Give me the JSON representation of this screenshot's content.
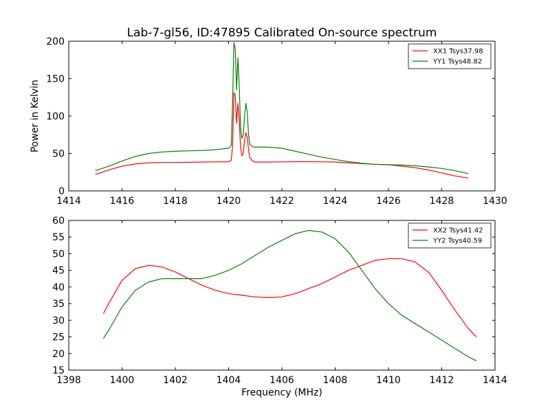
{
  "figure": {
    "title": "Lab-7-gl56, ID:47895 Calibrated On-source spectrum"
  },
  "chart_data": [
    {
      "type": "line",
      "title": "Lab-7-gl56, ID:47895 Calibrated On-source spectrum",
      "xlabel": "",
      "ylabel": "Power in Kelvin",
      "xlim": [
        1414,
        1430
      ],
      "ylim": [
        0,
        200
      ],
      "xticks": [
        1414,
        1416,
        1418,
        1420,
        1422,
        1424,
        1426,
        1428,
        1430
      ],
      "yticks": [
        0,
        50,
        100,
        150,
        200
      ],
      "grid": false,
      "legend": "top-right",
      "series": [
        {
          "name": "XX1 Tsys37.98",
          "color": "#ff0000",
          "x": [
            1415.0,
            1415.5,
            1416.0,
            1416.5,
            1417.0,
            1417.5,
            1418.0,
            1418.5,
            1419.0,
            1419.5,
            1420.0,
            1420.1,
            1420.15,
            1420.2,
            1420.25,
            1420.3,
            1420.35,
            1420.4,
            1420.45,
            1420.5,
            1420.55,
            1420.6,
            1420.65,
            1420.7,
            1420.75,
            1420.8,
            1420.9,
            1421.0,
            1421.5,
            1422.0,
            1422.5,
            1423.0,
            1423.5,
            1424.0,
            1424.5,
            1425.0,
            1425.5,
            1426.0,
            1426.5,
            1427.0,
            1427.5,
            1428.0,
            1428.5,
            1429.0
          ],
          "y": [
            22,
            28,
            33,
            36,
            37.5,
            38,
            38,
            38.2,
            38.5,
            38.8,
            39,
            41,
            60,
            131,
            128,
            90,
            117,
            95,
            58,
            47,
            50,
            68,
            78,
            72,
            55,
            44,
            40,
            38.5,
            38.5,
            38.7,
            39,
            39,
            38.8,
            38.5,
            37.5,
            36.5,
            35.5,
            35,
            33,
            31,
            28,
            24,
            20,
            17
          ]
        },
        {
          "name": "YY1 Tsys48.82",
          "color": "#008000",
          "x": [
            1415.0,
            1415.5,
            1416.0,
            1416.5,
            1417.0,
            1417.5,
            1418.0,
            1418.5,
            1419.0,
            1419.5,
            1420.0,
            1420.1,
            1420.15,
            1420.2,
            1420.25,
            1420.3,
            1420.35,
            1420.4,
            1420.45,
            1420.5,
            1420.55,
            1420.6,
            1420.65,
            1420.7,
            1420.75,
            1420.8,
            1420.9,
            1421.0,
            1421.5,
            1422.0,
            1422.5,
            1423.0,
            1423.5,
            1424.0,
            1424.5,
            1425.0,
            1425.5,
            1426.0,
            1426.5,
            1427.0,
            1427.5,
            1428.0,
            1428.5,
            1429.0
          ],
          "y": [
            27,
            33,
            40,
            46,
            50,
            52,
            53,
            53.5,
            54,
            55,
            57,
            61,
            120,
            198,
            190,
            135,
            178,
            140,
            85,
            70,
            75,
            100,
            117,
            105,
            75,
            62,
            59,
            58.5,
            58.5,
            57,
            53,
            49,
            45,
            42,
            39,
            37,
            35.5,
            35,
            34.5,
            33.5,
            32,
            30,
            27,
            23
          ]
        }
      ]
    },
    {
      "type": "line",
      "title": "",
      "xlabel": "Frequency (MHz)",
      "ylabel": "",
      "xlim": [
        1398,
        1414
      ],
      "ylim": [
        15,
        60
      ],
      "xticks": [
        1398,
        1400,
        1402,
        1404,
        1406,
        1408,
        1410,
        1412,
        1414
      ],
      "yticks": [
        15,
        20,
        25,
        30,
        35,
        40,
        45,
        50,
        55,
        60
      ],
      "grid": false,
      "legend": "top-right",
      "series": [
        {
          "name": "XX2 Tsys41.42",
          "color": "#ff0000",
          "x": [
            1399.3,
            1399.5,
            1400.0,
            1400.5,
            1401.0,
            1401.5,
            1402.0,
            1402.5,
            1403.0,
            1403.5,
            1404.0,
            1404.5,
            1405.0,
            1405.5,
            1406.0,
            1406.5,
            1407.0,
            1407.5,
            1408.0,
            1408.5,
            1409.0,
            1409.5,
            1410.0,
            1410.5,
            1411.0,
            1411.5,
            1412.0,
            1412.5,
            1413.0,
            1413.3
          ],
          "y": [
            32,
            35,
            42,
            45.5,
            46.5,
            46,
            44.5,
            42.5,
            40.5,
            39,
            38,
            37.5,
            37,
            36.8,
            37,
            38,
            39.5,
            41,
            43,
            45,
            46.5,
            48,
            48.5,
            48.5,
            47.5,
            44.5,
            39,
            33,
            27.5,
            25
          ]
        },
        {
          "name": "YY2 Tsys40.59",
          "color": "#008000",
          "x": [
            1399.3,
            1399.5,
            1400.0,
            1400.5,
            1401.0,
            1401.5,
            1402.0,
            1402.5,
            1403.0,
            1403.5,
            1404.0,
            1404.5,
            1405.0,
            1405.5,
            1406.0,
            1406.5,
            1407.0,
            1407.5,
            1408.0,
            1408.5,
            1409.0,
            1409.5,
            1410.0,
            1410.5,
            1411.0,
            1411.5,
            1412.0,
            1412.5,
            1413.0,
            1413.3
          ],
          "y": [
            24.5,
            27,
            34,
            39,
            41.5,
            42.5,
            42.5,
            42.5,
            42.5,
            43.5,
            45,
            47,
            49.5,
            52,
            54,
            56,
            57,
            56.5,
            54.5,
            50.5,
            45,
            39.5,
            35,
            31.5,
            29,
            26.5,
            24,
            21.5,
            19,
            17.8
          ]
        }
      ]
    }
  ]
}
